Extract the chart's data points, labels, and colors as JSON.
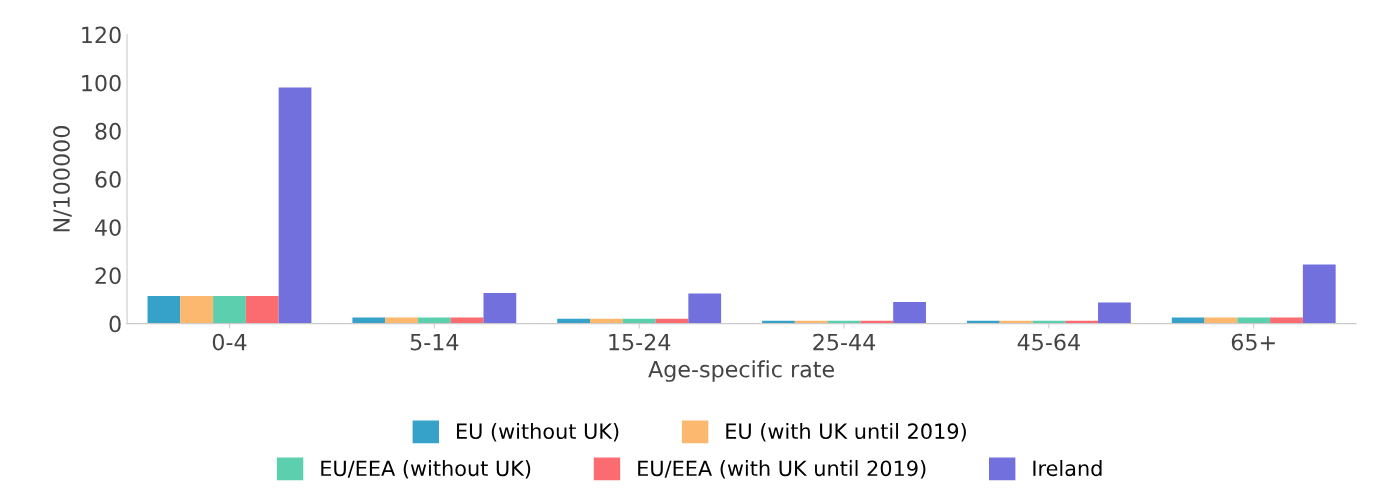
{
  "chart_data": {
    "type": "bar",
    "xlabel": "Age-specific rate",
    "ylabel": "N/100000",
    "categories": [
      "0-4",
      "5-14",
      "15-24",
      "25-44",
      "45-64",
      "65+"
    ],
    "ylim": [
      0,
      120
    ],
    "yticks": [
      0,
      20,
      40,
      60,
      80,
      100,
      120
    ],
    "grid": false,
    "legend": "bottom",
    "series": [
      {
        "name": "EU (without UK)",
        "color": "#37a2c9",
        "values": [
          11.4,
          2.5,
          2,
          1.2,
          1.2,
          2.5
        ]
      },
      {
        "name": "EU (with UK until 2019)",
        "color": "#fbb86e",
        "values": [
          11.4,
          2.5,
          2,
          1.2,
          1.2,
          2.5
        ]
      },
      {
        "name": "EU/EEA (without UK)",
        "color": "#5ccfae",
        "values": [
          11.4,
          2.5,
          2,
          1.2,
          1.2,
          2.5
        ]
      },
      {
        "name": "EU/EEA (with UK until 2019)",
        "color": "#fb6c71",
        "values": [
          11.4,
          2.5,
          2,
          1.2,
          1.2,
          2.5
        ]
      },
      {
        "name": "Ireland",
        "color": "#7170dc",
        "values": [
          98,
          12.7,
          12.5,
          9,
          8.7,
          24.5
        ]
      }
    ]
  }
}
